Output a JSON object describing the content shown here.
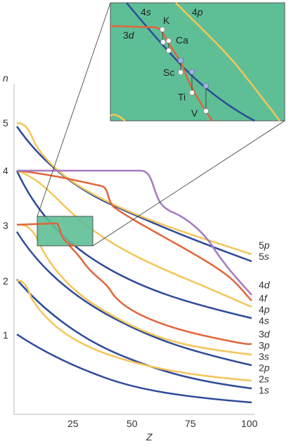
{
  "chart_data": {
    "type": "line",
    "xlabel": "Z",
    "ylabel": "n",
    "x_ticks": [
      "25",
      "50",
      "75",
      "100"
    ],
    "y_ticks": [
      "1",
      "2",
      "3",
      "4",
      "5"
    ],
    "xlim": [
      0,
      100
    ],
    "series": [
      {
        "name_main": "1",
        "name_sub": "s",
        "color": "#2e4a9a",
        "start_n": 1,
        "end_n": 0.1
      },
      {
        "name_main": "2",
        "name_sub": "s",
        "color": "#2e4a9a",
        "start_n": 2,
        "end_n": 0.38
      },
      {
        "name_main": "2",
        "name_sub": "p",
        "color": "#f4c558",
        "start_n": 2,
        "end_n": 0.5
      },
      {
        "name_main": "3",
        "name_sub": "s",
        "color": "#2e4a9a",
        "start_n": 3,
        "end_n": 0.72
      },
      {
        "name_main": "3",
        "name_sub": "p",
        "color": "#f4c558",
        "start_n": 3,
        "end_n": 0.82
      },
      {
        "name_main": "3",
        "name_sub": "d",
        "color": "#e0663a",
        "start_n": 3,
        "end_n": 1.02
      },
      {
        "name_main": "4",
        "name_sub": "s",
        "color": "#2e4a9a",
        "start_n": 4,
        "end_n": 1.5
      },
      {
        "name_main": "4",
        "name_sub": "p",
        "color": "#f4c558",
        "start_n": 4,
        "end_n": 1.65
      },
      {
        "name_main": "4",
        "name_sub": "d",
        "color": "#e0663a",
        "start_n": 4,
        "end_n": 1.95
      },
      {
        "name_main": "4",
        "name_sub": "f",
        "color": "#a57ac0",
        "start_n": 4,
        "end_n": 1.7
      },
      {
        "name_main": "5",
        "name_sub": "s",
        "color": "#2e4a9a",
        "start_n": 5,
        "end_n": 2.55
      },
      {
        "name_main": "5",
        "name_sub": "p",
        "color": "#f4c558",
        "start_n": 5,
        "end_n": 2.7
      }
    ],
    "inset": {
      "background": "#5ebf96",
      "region_x": [
        10,
        33
      ],
      "region_n": [
        2.6,
        3.1
      ],
      "orbitals": [
        {
          "main": "4",
          "sub": "s"
        },
        {
          "main": "4",
          "sub": "p"
        },
        {
          "main": "3",
          "sub": "d"
        }
      ],
      "elements": [
        "K",
        "Ca",
        "Sc",
        "Ti",
        "V"
      ]
    }
  }
}
